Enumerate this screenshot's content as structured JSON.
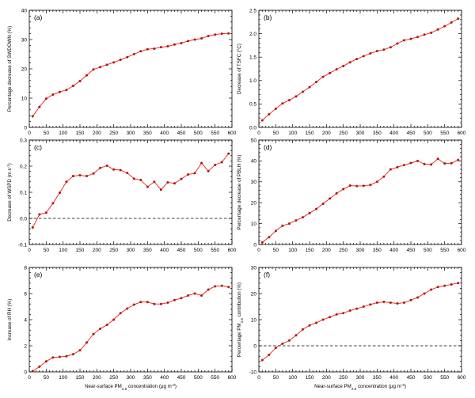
{
  "chart_data": [
    {
      "type": "line",
      "panel_label": "(a)",
      "xlabel": "",
      "ylabel": "Percentage decrease of SWDOWN (%)",
      "xlim": [
        0,
        600
      ],
      "ylim": [
        0,
        40
      ],
      "xticks": [
        0,
        50,
        100,
        150,
        200,
        250,
        300,
        350,
        400,
        450,
        500,
        550,
        600
      ],
      "yticks": [
        0,
        10,
        20,
        30,
        40
      ],
      "zero_line": false,
      "x": [
        10,
        30,
        50,
        70,
        90,
        110,
        130,
        150,
        170,
        190,
        210,
        230,
        250,
        270,
        290,
        310,
        330,
        350,
        370,
        390,
        410,
        430,
        450,
        470,
        490,
        510,
        530,
        550,
        570,
        590
      ],
      "values": [
        3.8,
        7.0,
        9.8,
        11.2,
        12.1,
        12.8,
        14.2,
        15.8,
        17.8,
        19.8,
        20.6,
        21.4,
        22.2,
        23.1,
        24.0,
        25.0,
        26.0,
        26.7,
        26.9,
        27.4,
        27.7,
        28.3,
        28.8,
        29.5,
        30.0,
        30.4,
        31.2,
        31.7,
        32.0,
        32.1
      ],
      "colors": {
        "line": "#e0241b",
        "marker": "#b8120c"
      }
    },
    {
      "type": "line",
      "panel_label": "(b)",
      "xlabel": "",
      "ylabel": "Decrease of TSFC (°C)",
      "xlim": [
        0,
        600
      ],
      "ylim": [
        0,
        2.5
      ],
      "xticks": [
        0,
        50,
        100,
        150,
        200,
        250,
        300,
        350,
        400,
        450,
        500,
        550,
        600
      ],
      "yticks": [
        0.0,
        0.5,
        1.0,
        1.5,
        2.0,
        2.5
      ],
      "ytick_labels": [
        "0.0",
        "0.5",
        "1.0",
        "1.5",
        "2.0",
        "2.5"
      ],
      "zero_line": false,
      "x": [
        10,
        30,
        50,
        70,
        90,
        110,
        130,
        150,
        170,
        190,
        210,
        230,
        250,
        270,
        290,
        310,
        330,
        350,
        370,
        390,
        410,
        430,
        450,
        470,
        490,
        510,
        530,
        550,
        570,
        590
      ],
      "values": [
        0.15,
        0.28,
        0.4,
        0.51,
        0.58,
        0.66,
        0.76,
        0.86,
        0.97,
        1.08,
        1.16,
        1.24,
        1.31,
        1.39,
        1.46,
        1.52,
        1.58,
        1.63,
        1.66,
        1.71,
        1.79,
        1.86,
        1.89,
        1.93,
        1.98,
        2.02,
        2.09,
        2.16,
        2.24,
        2.32
      ],
      "colors": {
        "line": "#e0241b",
        "marker": "#b8120c"
      }
    },
    {
      "type": "line",
      "panel_label": "(c)",
      "xlabel": "",
      "ylabel": "Decrease of WSPD (m s⁻¹)",
      "xlim": [
        0,
        600
      ],
      "ylim": [
        -0.1,
        0.3
      ],
      "xticks": [
        0,
        50,
        100,
        150,
        200,
        250,
        300,
        350,
        400,
        450,
        500,
        550,
        600
      ],
      "yticks": [
        -0.1,
        0.0,
        0.1,
        0.2,
        0.3
      ],
      "ytick_labels": [
        "-0.1",
        "0.0",
        "0.1",
        "0.2",
        "0.3"
      ],
      "zero_line": true,
      "x": [
        10,
        30,
        50,
        70,
        90,
        110,
        130,
        150,
        170,
        190,
        210,
        230,
        250,
        270,
        290,
        310,
        330,
        350,
        370,
        390,
        410,
        430,
        450,
        470,
        490,
        510,
        530,
        550,
        570,
        590
      ],
      "values": [
        -0.035,
        0.015,
        0.022,
        0.058,
        0.098,
        0.14,
        0.162,
        0.165,
        0.162,
        0.172,
        0.193,
        0.202,
        0.187,
        0.185,
        0.174,
        0.152,
        0.147,
        0.121,
        0.14,
        0.11,
        0.138,
        0.134,
        0.151,
        0.168,
        0.173,
        0.212,
        0.181,
        0.205,
        0.215,
        0.248
      ],
      "colors": {
        "line": "#e0241b",
        "marker": "#b8120c"
      }
    },
    {
      "type": "line",
      "panel_label": "(d)",
      "xlabel": "",
      "ylabel": "Percentage decrease of PBLH (%)",
      "xlim": [
        0,
        600
      ],
      "ylim": [
        0,
        50
      ],
      "xticks": [
        0,
        50,
        100,
        150,
        200,
        250,
        300,
        350,
        400,
        450,
        500,
        550,
        600
      ],
      "yticks": [
        0,
        10,
        20,
        30,
        40,
        50
      ],
      "zero_line": false,
      "x": [
        10,
        30,
        50,
        70,
        90,
        110,
        130,
        150,
        170,
        190,
        210,
        230,
        250,
        270,
        290,
        310,
        330,
        350,
        370,
        390,
        410,
        430,
        450,
        470,
        490,
        510,
        530,
        550,
        570,
        590
      ],
      "values": [
        1.0,
        3.5,
        6.5,
        9.0,
        10.0,
        11.5,
        13.0,
        15.0,
        17.0,
        19.5,
        22.0,
        24.5,
        26.5,
        28.2,
        28.0,
        28.1,
        28.5,
        30.0,
        32.5,
        36.0,
        37.0,
        38.0,
        39.0,
        40.0,
        38.5,
        38.3,
        41.0,
        38.8,
        38.9,
        40.5
      ],
      "colors": {
        "line": "#e0241b",
        "marker": "#b8120c"
      }
    },
    {
      "type": "line",
      "panel_label": "(e)",
      "xlabel": "Near-surface PM₂.₅ concentration (µg m⁻³)",
      "ylabel": "Increase of RH (%)",
      "xlim": [
        0,
        600
      ],
      "ylim": [
        0,
        8
      ],
      "xticks": [
        0,
        50,
        100,
        150,
        200,
        250,
        300,
        350,
        400,
        450,
        500,
        550,
        600
      ],
      "yticks": [
        0,
        2,
        4,
        6,
        8
      ],
      "zero_line": false,
      "x": [
        10,
        30,
        50,
        70,
        90,
        110,
        130,
        150,
        170,
        190,
        210,
        230,
        250,
        270,
        290,
        310,
        330,
        350,
        370,
        390,
        410,
        430,
        450,
        470,
        490,
        510,
        530,
        550,
        570,
        590
      ],
      "values": [
        0.05,
        0.4,
        0.8,
        1.1,
        1.15,
        1.2,
        1.35,
        1.65,
        2.25,
        2.9,
        3.3,
        3.6,
        4.0,
        4.5,
        4.85,
        5.15,
        5.35,
        5.35,
        5.2,
        5.2,
        5.3,
        5.5,
        5.65,
        5.85,
        6.0,
        5.85,
        6.3,
        6.55,
        6.6,
        6.5
      ],
      "colors": {
        "line": "#e0241b",
        "marker": "#b8120c"
      }
    },
    {
      "type": "line",
      "panel_label": "(f)",
      "xlabel": "Near-surface PM₂.₅ concentration (µg m⁻³)",
      "ylabel": "Percentage PM₂.₅ contribution (%)",
      "xlim": [
        0,
        600
      ],
      "ylim": [
        -10,
        30
      ],
      "xticks": [
        0,
        50,
        100,
        150,
        200,
        250,
        300,
        350,
        400,
        450,
        500,
        550,
        600
      ],
      "yticks": [
        -10,
        0,
        10,
        20,
        30
      ],
      "zero_line": true,
      "x": [
        10,
        30,
        50,
        70,
        90,
        110,
        130,
        150,
        170,
        190,
        210,
        230,
        250,
        270,
        290,
        310,
        330,
        350,
        370,
        390,
        410,
        430,
        450,
        470,
        490,
        510,
        530,
        550,
        570,
        590
      ],
      "values": [
        -5.5,
        -3.5,
        -0.8,
        0.8,
        2.0,
        4.0,
        6.3,
        7.8,
        8.8,
        10.0,
        11.0,
        12.0,
        12.5,
        13.5,
        14.2,
        15.0,
        15.8,
        16.5,
        16.8,
        16.5,
        16.2,
        16.5,
        17.5,
        18.5,
        20.0,
        21.5,
        22.5,
        23.0,
        23.5,
        24.0
      ],
      "colors": {
        "line": "#e0241b",
        "marker": "#b8120c"
      }
    }
  ]
}
